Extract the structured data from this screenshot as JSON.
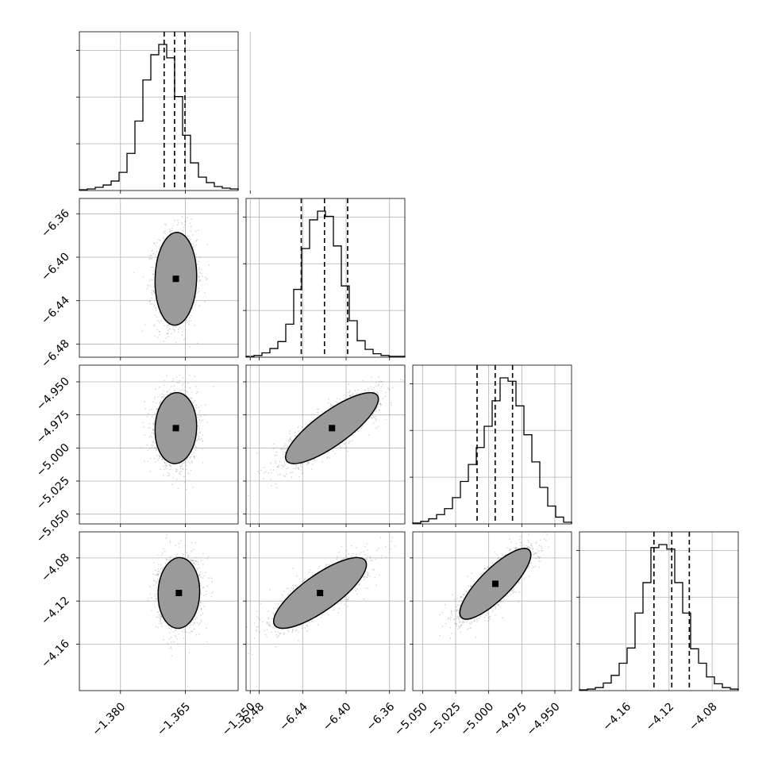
{
  "chart_data": {
    "type": "corner",
    "n_params": 4,
    "grid": true,
    "labels": [
      "",
      "",
      "",
      ""
    ],
    "quantiles": [
      0.16,
      0.5,
      0.84
    ],
    "params": [
      {
        "index": 0,
        "range": [
          -1.3895,
          -1.3528
        ],
        "ticks": [
          -1.38,
          -1.365,
          -1.35
        ],
        "tick_labels": [
          "−1.380",
          "−1.365",
          "−1.350"
        ],
        "quantile_values": [
          -1.3699,
          -1.3675,
          -1.3651
        ],
        "hist": [
          1,
          2,
          4,
          7,
          12,
          23,
          47,
          88,
          140,
          172,
          185,
          168,
          119,
          70,
          35,
          17,
          10,
          5,
          3,
          2
        ]
      },
      {
        "index": 1,
        "range": [
          -6.4921,
          -6.3459
        ],
        "ticks": [
          -6.48,
          -6.44,
          -6.4,
          -6.36
        ],
        "tick_labels": [
          "−6.48",
          "−6.44",
          "−6.40",
          "−6.36"
        ],
        "quantile_values": [
          -6.4413,
          -6.4199,
          -6.3986
        ],
        "hist": [
          1,
          2,
          5,
          10,
          18,
          38,
          78,
          125,
          158,
          168,
          162,
          128,
          82,
          42,
          19,
          9,
          4,
          2,
          1,
          1
        ]
      },
      {
        "index": 2,
        "range": [
          -5.0574,
          -4.9374
        ],
        "ticks": [
          -5.05,
          -5.025,
          -5.0,
          -4.975,
          -4.95
        ],
        "tick_labels": [
          "−5.050",
          "−5.025",
          "−5.000",
          "−4.975",
          "−4.950"
        ],
        "quantile_values": [
          -5.0088,
          -4.9951,
          -4.982
        ],
        "hist": [
          1,
          3,
          6,
          11,
          18,
          31,
          50,
          70,
          90,
          115,
          145,
          172,
          168,
          139,
          105,
          73,
          43,
          21,
          8,
          2
        ]
      },
      {
        "index": 3,
        "range": [
          -4.2031,
          -4.0558
        ],
        "ticks": [
          -4.16,
          -4.12,
          -4.08
        ],
        "tick_labels": [
          "−4.16",
          "−4.12",
          "−4.08"
        ],
        "quantile_values": [
          -4.134,
          -4.1175,
          -4.1012
        ],
        "hist": [
          1,
          2,
          4,
          10,
          20,
          36,
          56,
          102,
          142,
          188,
          192,
          186,
          142,
          102,
          55,
          36,
          18,
          9,
          4,
          2
        ]
      }
    ],
    "pairs": [
      {
        "row": 1,
        "col": 0,
        "correlation": 0.05,
        "peak": [
          -1.3672,
          -6.4199
        ]
      },
      {
        "row": 2,
        "col": 0,
        "correlation": 0.05,
        "peak": [
          -1.3672,
          -4.985
        ]
      },
      {
        "row": 2,
        "col": 1,
        "correlation": 0.82,
        "peak": [
          -6.413,
          -4.985
        ]
      },
      {
        "row": 3,
        "col": 0,
        "correlation": 0.04,
        "peak": [
          -1.3665,
          -4.1125
        ]
      },
      {
        "row": 3,
        "col": 1,
        "correlation": 0.8,
        "peak": [
          -6.424,
          -4.1125
        ]
      },
      {
        "row": 3,
        "col": 2,
        "correlation": 0.82,
        "peak": [
          -4.995,
          -4.104
        ]
      }
    ],
    "contour_levels": [
      0.118,
      0.393,
      0.675,
      0.865
    ],
    "colors": {
      "line": "#000000",
      "grid": "#b0b0b0",
      "points": "#808080",
      "frame": "#000000"
    }
  }
}
